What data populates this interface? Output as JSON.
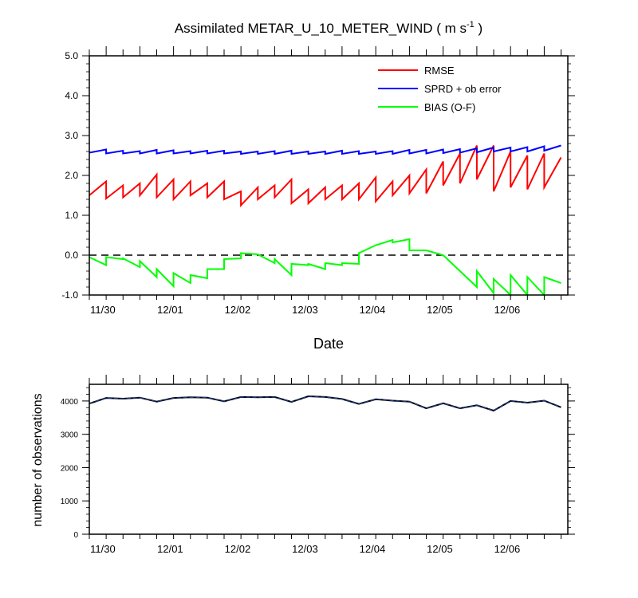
{
  "chart_data": [
    {
      "type": "line",
      "title_main": "Assimilated METAR_U_10_METER_WIND ( m s",
      "title_sup": "-1",
      "title_end": " )",
      "xlabel": "Date",
      "ylabel": "",
      "ylim": [
        -1.0,
        5.0
      ],
      "yticks": [
        "-1.0",
        "0.0",
        "1.0",
        "2.0",
        "3.0",
        "4.0",
        "5.0"
      ],
      "xlim": [
        0,
        7.1
      ],
      "xtick_labels": [
        "11/30",
        "12/01",
        "12/02",
        "12/03",
        "12/04",
        "12/05",
        "12/06"
      ],
      "xtick_values": [
        0.2,
        1.2,
        2.2,
        3.2,
        4.2,
        5.2,
        6.2
      ],
      "reference_line": 0.0,
      "legend": [
        "RMSE",
        "SPRD + ob error",
        "BIAS (O-F)"
      ],
      "series": [
        {
          "name": "RMSE",
          "color": "#ff0000",
          "x": [
            0,
            0.25,
            0.25,
            0.5,
            0.5,
            0.75,
            0.75,
            1.0,
            1.0,
            1.25,
            1.25,
            1.5,
            1.5,
            1.75,
            1.75,
            2.0,
            2.0,
            2.25,
            2.25,
            2.5,
            2.5,
            2.75,
            2.75,
            3.0,
            3.0,
            3.25,
            3.25,
            3.5,
            3.5,
            3.75,
            3.75,
            4.0,
            4.0,
            4.25,
            4.25,
            4.5,
            4.5,
            4.75,
            4.75,
            5.0,
            5.0,
            5.25,
            5.25,
            5.5,
            5.5,
            5.75,
            5.75,
            6.0,
            6.0,
            6.25,
            6.25,
            6.5,
            6.5,
            6.75,
            6.75,
            7.0
          ],
          "y": [
            1.5,
            1.85,
            1.42,
            1.75,
            1.45,
            1.8,
            1.5,
            2.02,
            1.45,
            1.9,
            1.4,
            1.85,
            1.5,
            1.8,
            1.45,
            1.85,
            1.4,
            1.6,
            1.25,
            1.7,
            1.4,
            1.75,
            1.45,
            1.9,
            1.3,
            1.65,
            1.3,
            1.7,
            1.4,
            1.75,
            1.4,
            1.8,
            1.4,
            1.95,
            1.35,
            1.85,
            1.5,
            2.0,
            1.55,
            2.15,
            1.55,
            2.35,
            1.75,
            2.55,
            1.8,
            2.75,
            1.9,
            2.75,
            1.6,
            2.6,
            1.7,
            2.5,
            1.65,
            2.55,
            1.7,
            2.45
          ]
        },
        {
          "name": "SPRD + ob error",
          "color": "#0000ff",
          "x": [
            0,
            0.25,
            0.25,
            0.5,
            0.5,
            0.75,
            0.75,
            1.0,
            1.0,
            1.25,
            1.25,
            1.5,
            1.5,
            1.75,
            1.75,
            2.0,
            2.0,
            2.25,
            2.25,
            2.5,
            2.5,
            2.75,
            2.75,
            3.0,
            3.0,
            3.25,
            3.25,
            3.5,
            3.5,
            3.75,
            3.75,
            4.0,
            4.0,
            4.25,
            4.25,
            4.5,
            4.5,
            4.75,
            4.75,
            5.0,
            5.0,
            5.25,
            5.25,
            5.5,
            5.5,
            5.75,
            5.75,
            6.0,
            6.0,
            6.25,
            6.25,
            6.5,
            6.5,
            6.75,
            6.75,
            7.0
          ],
          "y": [
            2.57,
            2.65,
            2.55,
            2.62,
            2.55,
            2.61,
            2.55,
            2.64,
            2.55,
            2.63,
            2.55,
            2.61,
            2.55,
            2.62,
            2.55,
            2.62,
            2.55,
            2.6,
            2.54,
            2.6,
            2.54,
            2.61,
            2.54,
            2.62,
            2.54,
            2.6,
            2.54,
            2.6,
            2.54,
            2.62,
            2.54,
            2.61,
            2.54,
            2.6,
            2.54,
            2.61,
            2.54,
            2.64,
            2.55,
            2.64,
            2.55,
            2.65,
            2.56,
            2.66,
            2.57,
            2.68,
            2.58,
            2.7,
            2.6,
            2.7,
            2.6,
            2.71,
            2.6,
            2.73,
            2.62,
            2.75
          ]
        },
        {
          "name": "BIAS (O-F)",
          "color": "#00ff00",
          "x": [
            0,
            0.25,
            0.25,
            0.5,
            0.5,
            0.75,
            0.75,
            1.0,
            1.0,
            1.25,
            1.25,
            1.5,
            1.5,
            1.75,
            1.75,
            2.0,
            2.0,
            2.25,
            2.25,
            2.5,
            2.5,
            2.75,
            2.75,
            3.0,
            3.0,
            3.25,
            3.25,
            3.5,
            3.5,
            3.75,
            3.75,
            4.0,
            4.0,
            4.25,
            4.25,
            4.5,
            4.5,
            4.75,
            4.75,
            5.0,
            5.0,
            5.25,
            5.25,
            5.5,
            5.5,
            5.75,
            5.75,
            6.0,
            6.0,
            6.25,
            6.25,
            6.5,
            6.5,
            6.75,
            6.75,
            7.0
          ],
          "y": [
            -0.05,
            -0.25,
            -0.05,
            -0.1,
            -0.08,
            -0.3,
            -0.15,
            -0.55,
            -0.35,
            -0.78,
            -0.45,
            -0.7,
            -0.5,
            -0.58,
            -0.35,
            -0.35,
            -0.1,
            -0.08,
            0.05,
            0.02,
            0.02,
            -0.2,
            -0.1,
            -0.5,
            -0.22,
            -0.25,
            -0.22,
            -0.35,
            -0.2,
            -0.25,
            -0.2,
            -0.22,
            0.05,
            0.25,
            0.25,
            0.38,
            0.32,
            0.4,
            0.12,
            0.12,
            0.12,
            0.0,
            0.0,
            -0.4,
            -0.4,
            -0.8,
            -0.4,
            -0.95,
            -0.6,
            -1.0,
            -0.5,
            -1.0,
            -0.55,
            -1.0,
            -0.55,
            -0.7
          ]
        }
      ]
    },
    {
      "type": "line",
      "title": "",
      "xlabel": "",
      "ylabel": "number of observations",
      "ylim": [
        0,
        4500
      ],
      "yticks": [
        "0",
        "1000",
        "2000",
        "3000",
        "4000"
      ],
      "xlim": [
        0,
        7.1
      ],
      "xtick_labels": [
        "11/30",
        "12/01",
        "12/02",
        "12/03",
        "12/04",
        "12/05",
        "12/06"
      ],
      "xtick_values": [
        0.2,
        1.2,
        2.2,
        3.2,
        4.2,
        5.2,
        6.2
      ],
      "series": [
        {
          "name": "number of observations",
          "color": "#000000",
          "x": [
            0,
            0.25,
            0.5,
            0.75,
            1.0,
            1.25,
            1.5,
            1.75,
            2.0,
            2.25,
            2.5,
            2.75,
            3.0,
            3.25,
            3.5,
            3.75,
            4.0,
            4.25,
            4.5,
            4.75,
            5.0,
            5.25,
            5.5,
            5.75,
            6.0,
            6.25,
            6.5,
            6.75,
            7.0
          ],
          "y": [
            3920,
            4090,
            4070,
            4100,
            3980,
            4090,
            4110,
            4100,
            3990,
            4120,
            4110,
            4120,
            3970,
            4140,
            4120,
            4060,
            3910,
            4050,
            4010,
            3980,
            3780,
            3930,
            3780,
            3870,
            3710,
            4000,
            3950,
            4010,
            3810
          ]
        }
      ]
    }
  ]
}
